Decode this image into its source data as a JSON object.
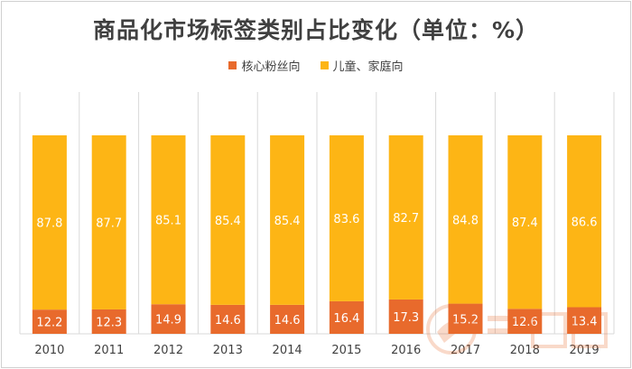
{
  "title": "商品化市场标签类别占比变化（单位：%）",
  "colors": {
    "core": "#e86a2c",
    "family": "#fdb515",
    "grid": "#d9d9d9",
    "axis_text": "#404040"
  },
  "chart_data": {
    "type": "bar",
    "stacked": true,
    "percent": true,
    "categories": [
      "2010",
      "2011",
      "2012",
      "2013",
      "2014",
      "2015",
      "2016",
      "2017",
      "2018",
      "2019"
    ],
    "series": [
      {
        "name": "核心粉丝向",
        "values": [
          12.2,
          12.3,
          14.9,
          14.6,
          14.6,
          16.4,
          17.3,
          15.2,
          12.6,
          13.4
        ]
      },
      {
        "name": "儿童、家庭向",
        "values": [
          87.8,
          87.7,
          85.1,
          85.4,
          85.4,
          83.6,
          82.7,
          84.8,
          87.4,
          86.6
        ]
      }
    ],
    "ylim": [
      0,
      100
    ],
    "legend_position": "top-center",
    "grid": "vertical-separators"
  }
}
